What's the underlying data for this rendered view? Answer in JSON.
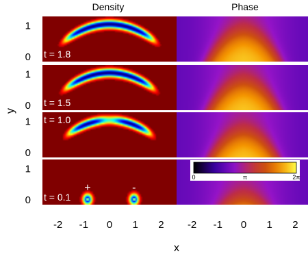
{
  "chart_data": {
    "type": "heatmap",
    "column_titles": [
      "Density",
      "Phase"
    ],
    "xlabel": "x",
    "ylabel": "y",
    "x_ticks": [
      "-2",
      "-1",
      "0",
      "1",
      "2"
    ],
    "y_ticks": [
      "0",
      "1"
    ],
    "xlim": [
      -2.6,
      2.6
    ],
    "ylim": [
      -0.15,
      1.3
    ],
    "rows": [
      {
        "time_label": "t = 1.8",
        "t": 1.8
      },
      {
        "time_label": "t = 1.5",
        "t": 1.5
      },
      {
        "time_label": "t = 1.0",
        "t": 1.0
      },
      {
        "time_label": "t = 0.1",
        "t": 0.1
      }
    ],
    "vortex_labels": [
      "+",
      "-"
    ],
    "vortex_positions_x": [
      -0.85,
      0.95
    ],
    "colorbar": {
      "ticks": [
        "0",
        "π",
        "2π"
      ],
      "range": [
        0,
        6.283
      ]
    },
    "colors": {
      "density_background": "#800000",
      "density_peak": "#0000c0",
      "phase_low": "#000000",
      "phase_mid": "#c0392b",
      "phase_high": "#ffff44"
    }
  }
}
